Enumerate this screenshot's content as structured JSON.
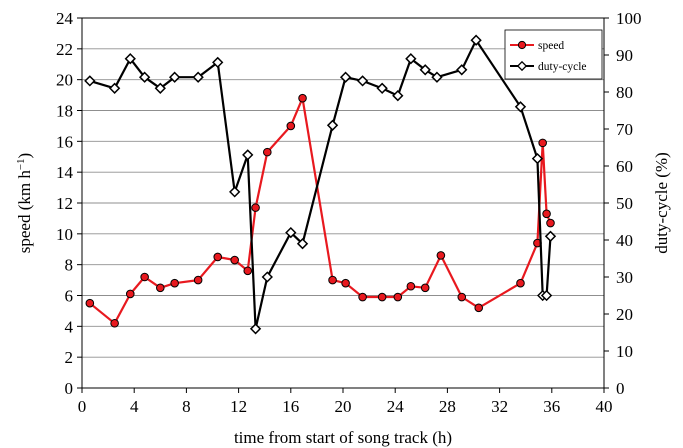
{
  "chart_data": {
    "type": "line",
    "xlabel": "time from start of song track (h)",
    "ylabel_left": "speed (km h",
    "ylabel_left_sup": "−1",
    "ylabel_left_close": ")",
    "ylabel_right": "duty-cycle (%)",
    "xlim": [
      0,
      40
    ],
    "ylim_left": [
      0,
      24
    ],
    "ylim_right": [
      0,
      100
    ],
    "x_ticks": [
      0,
      4,
      8,
      12,
      16,
      20,
      24,
      28,
      32,
      36,
      40
    ],
    "y_left_ticks": [
      0,
      2,
      4,
      6,
      8,
      10,
      12,
      14,
      16,
      18,
      20,
      22,
      24
    ],
    "y_right_ticks": [
      0,
      10,
      20,
      30,
      40,
      50,
      60,
      70,
      80,
      90,
      100
    ],
    "grid": "horizontal",
    "legend_position": "top-right",
    "colors": {
      "speed": "#e8191f",
      "duty_cycle": "#000000"
    },
    "series": [
      {
        "name": "speed",
        "axis": "left",
        "marker": "circle",
        "color": "#e8191f",
        "x": [
          0.6,
          2.5,
          3.7,
          4.8,
          6.0,
          7.1,
          8.9,
          10.4,
          11.7,
          12.7,
          13.3,
          14.2,
          16.0,
          16.9,
          19.2,
          20.2,
          21.5,
          23.0,
          24.2,
          25.2,
          26.3,
          27.5,
          29.1,
          30.4,
          33.6,
          34.9,
          35.3,
          35.6,
          35.9
        ],
        "values": [
          5.5,
          4.2,
          6.1,
          7.2,
          6.5,
          6.8,
          7.0,
          8.5,
          8.3,
          7.6,
          11.7,
          15.3,
          17.0,
          18.8,
          7.0,
          6.8,
          5.9,
          5.9,
          5.9,
          6.6,
          6.5,
          8.6,
          5.9,
          5.2,
          6.8,
          9.4,
          15.9,
          11.3,
          10.7
        ]
      },
      {
        "name": "duty-cycle",
        "axis": "right",
        "marker": "diamond",
        "color": "#000000",
        "x": [
          0.6,
          2.5,
          3.7,
          4.8,
          6.0,
          7.1,
          8.9,
          10.4,
          11.7,
          12.7,
          13.3,
          14.2,
          16.0,
          16.9,
          19.2,
          20.2,
          21.5,
          23.0,
          24.2,
          25.2,
          26.3,
          27.2,
          29.1,
          30.2,
          33.6,
          34.9,
          35.3,
          35.6,
          35.9
        ],
        "values": [
          83,
          81,
          89,
          84,
          81,
          84,
          84,
          88,
          53,
          63,
          16,
          30,
          42,
          39,
          71,
          84,
          83,
          81,
          79,
          89,
          86,
          84,
          86,
          94,
          76,
          62,
          25,
          25,
          41
        ]
      }
    ]
  }
}
